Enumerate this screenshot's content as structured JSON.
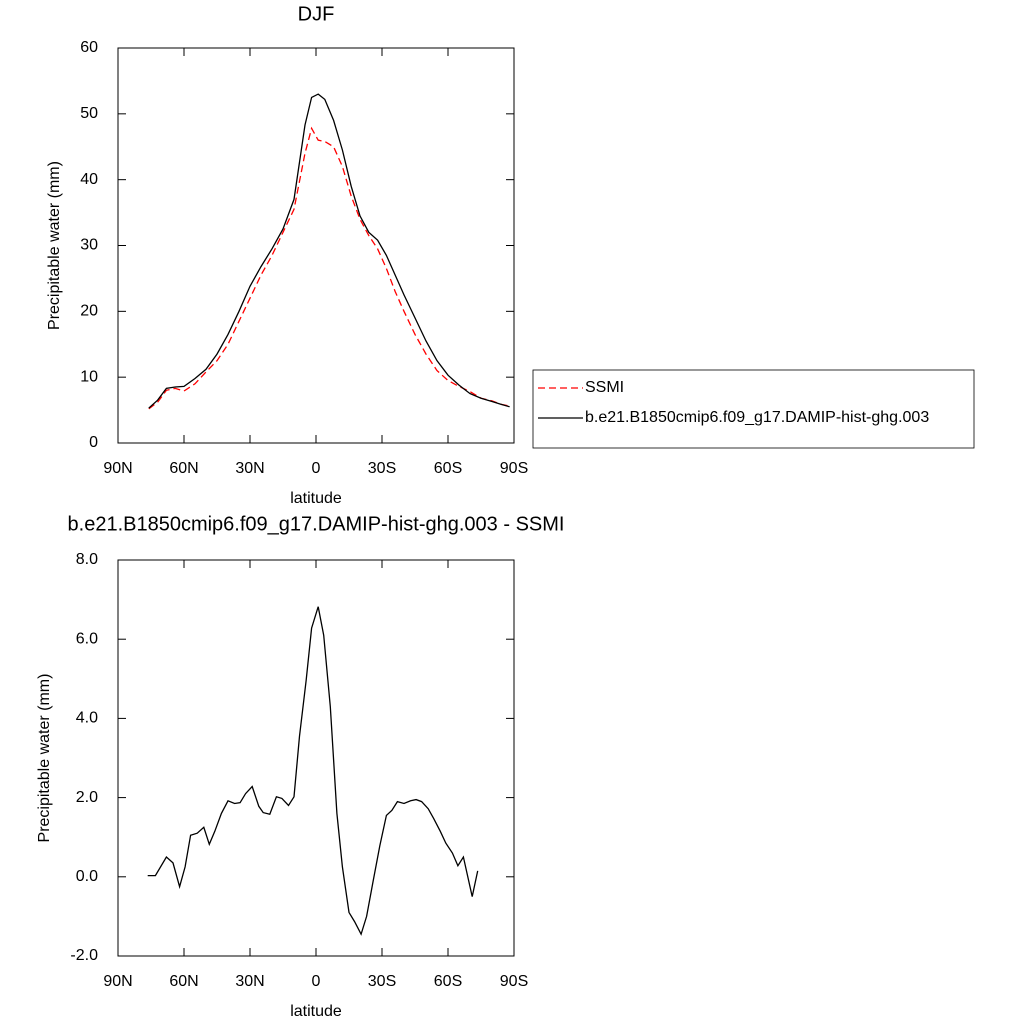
{
  "chart_data": [
    {
      "type": "line",
      "title": "DJF",
      "xlabel": "latitude",
      "ylabel": "Precipitable water (mm)",
      "x": [
        76,
        72,
        68,
        64,
        60,
        55,
        50,
        45,
        40,
        35,
        30,
        25,
        20,
        15,
        10,
        5,
        2,
        -1,
        -4,
        -8,
        -12,
        -16,
        -20,
        -24,
        -28,
        -32,
        -36,
        -40,
        -45,
        -50,
        -55,
        -60,
        -65,
        -70,
        -75,
        -80,
        -84,
        -88
      ],
      "series": [
        {
          "name": "SSMI",
          "color": "#ff0000",
          "style": "dashed",
          "values": [
            5.2,
            6.2,
            8.0,
            8.3,
            7.9,
            9.0,
            10.8,
            12.5,
            15,
            18.5,
            22,
            25.5,
            28.5,
            32,
            35.5,
            44,
            47.8,
            46,
            45.8,
            45,
            42,
            37.5,
            34,
            31.5,
            29.5,
            26.5,
            23,
            20,
            16.5,
            13.5,
            11,
            9.5,
            8.6,
            7.8,
            6.8,
            6.4,
            5.9,
            5.6
          ]
        },
        {
          "name": "b.e21.B1850cmip6.f09_g17.DAMIP-hist-ghg.003",
          "color": "#000000",
          "style": "solid",
          "values": [
            5.3,
            6.5,
            8.3,
            8.5,
            8.6,
            9.8,
            11.2,
            13.5,
            16.5,
            20,
            23.8,
            26.8,
            29.5,
            32.5,
            37,
            48.3,
            52.5,
            53,
            52.2,
            49,
            44.5,
            39,
            34.5,
            32,
            30.8,
            28.5,
            25.5,
            22.5,
            19,
            15.5,
            12.5,
            10.3,
            8.8,
            7.5,
            6.8,
            6.3,
            5.9,
            5.5
          ]
        }
      ],
      "xlim": [
        90,
        -90
      ],
      "xticks": [
        {
          "value": 90,
          "label": "90N"
        },
        {
          "value": 60,
          "label": "60N"
        },
        {
          "value": 30,
          "label": "30N"
        },
        0,
        {
          "value": -30,
          "label": "30S"
        },
        {
          "value": -60,
          "label": "60S"
        },
        {
          "value": -90,
          "label": "90S"
        }
      ],
      "ylim": [
        0,
        60
      ],
      "yticks": [
        0,
        10,
        20,
        30,
        40,
        50,
        60
      ],
      "legend": "right"
    },
    {
      "type": "line",
      "title": "b.e21.B1850cmip6.f09_g17.DAMIP-hist-ghg.003 - SSMI",
      "xlabel": "latitude",
      "ylabel": "Precipitable water (mm)",
      "x": [
        76.5,
        73,
        68,
        65,
        62,
        59.5,
        57,
        54,
        51,
        48.5,
        46,
        43,
        40,
        37,
        34.5,
        32,
        29,
        26,
        24,
        21,
        18,
        15.5,
        12.5,
        10,
        7.5,
        4.5,
        2,
        -1,
        -3.5,
        -6.5,
        -9.5,
        -12,
        -15,
        -17.5,
        -20.5,
        -23,
        -26,
        -29,
        -32,
        -34.5,
        -37,
        -40,
        -43,
        -45.5,
        -48,
        -51,
        -53.5,
        -56.5,
        -59,
        -62,
        -64.5,
        -67,
        -71,
        -73.5
      ],
      "values": [
        0.03,
        0.03,
        0.5,
        0.35,
        -0.25,
        0.25,
        1.05,
        1.1,
        1.25,
        0.82,
        1.15,
        1.6,
        1.92,
        1.85,
        1.87,
        2.1,
        2.28,
        1.78,
        1.62,
        1.58,
        2.02,
        1.98,
        1.8,
        2.02,
        3.55,
        4.95,
        6.28,
        6.82,
        6.1,
        4.3,
        1.6,
        0.25,
        -0.9,
        -1.13,
        -1.45,
        -1.0,
        -0.1,
        0.78,
        1.55,
        1.68,
        1.9,
        1.85,
        1.92,
        1.95,
        1.9,
        1.72,
        1.47,
        1.15,
        0.85,
        0.6,
        0.28,
        0.5,
        -0.5,
        0.15
      ],
      "color": "#000000",
      "xlim": [
        90,
        -90
      ],
      "xticks": [
        {
          "value": 90,
          "label": "90N"
        },
        {
          "value": 60,
          "label": "60N"
        },
        {
          "value": 30,
          "label": "30N"
        },
        0,
        {
          "value": -30,
          "label": "30S"
        },
        {
          "value": -60,
          "label": "60S"
        },
        {
          "value": -90,
          "label": "90S"
        }
      ],
      "ylim": [
        -2,
        8
      ],
      "yticks": [
        {
          "value": -2,
          "label": "-2.0"
        },
        {
          "value": 0,
          "label": "0.0"
        },
        {
          "value": 2,
          "label": "2.0"
        },
        {
          "value": 4,
          "label": "4.0"
        },
        {
          "value": 6,
          "label": "6.0"
        },
        {
          "value": 8,
          "label": "8.0"
        }
      ]
    }
  ]
}
